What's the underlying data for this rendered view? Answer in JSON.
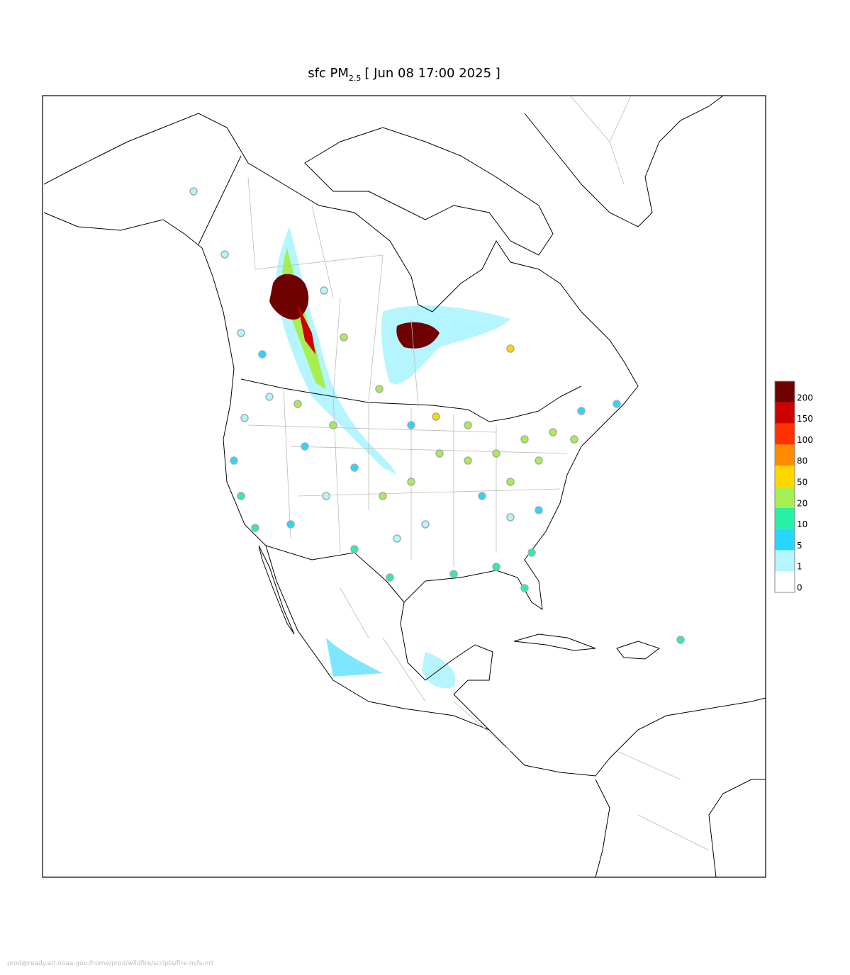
{
  "title": {
    "prefix": "sfc PM",
    "subscript": "2.5",
    "suffix": "[ Jun 08 17:00 2025 ]"
  },
  "colorbar": {
    "levels": [
      0,
      1,
      5,
      10,
      20,
      50,
      80,
      100,
      150,
      200
    ],
    "colors": [
      "#ffffff",
      "#b4f5ff",
      "#28d7ff",
      "#28f0a5",
      "#a5f050",
      "#ffd700",
      "#ff8c00",
      "#ff3200",
      "#cd0000",
      "#6e0000"
    ]
  },
  "footer": "prod@ready.arl.noaa.gov:/home/prod/wildfire/scripts/fire-nsfs-nrt"
}
